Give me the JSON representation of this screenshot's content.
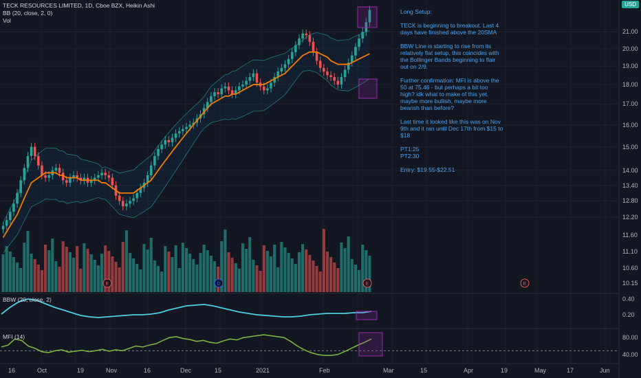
{
  "header": {
    "title": "TECK RESOURCES LIMITED, 1D, Cboe BZX, Heikin Ashi",
    "indicator_bb": "BB (20, close, 2, 0)",
    "indicator_vol": "Vol"
  },
  "currency": "USD",
  "price_axis": {
    "ticks": [
      "21.00",
      "20.00",
      "19.00",
      "18.00",
      "17.00",
      "16.00",
      "15.00",
      "14.00",
      "13.40",
      "12.80",
      "12.20",
      "11.60",
      "11.10",
      "10.60",
      "10.15"
    ]
  },
  "bbw_pane": {
    "title": "BBW (20, close, 2)",
    "ticks": [
      "0.40",
      "0.20"
    ]
  },
  "mfi_pane": {
    "title": "MFI (14)",
    "ticks": [
      "80.00",
      "40.00"
    ]
  },
  "time_axis": {
    "ticks": [
      "16",
      "Oct",
      "19",
      "Nov",
      "16",
      "Dec",
      "15",
      "2021",
      "Feb",
      "Mar",
      "15",
      "Apr",
      "19",
      "May",
      "17",
      "Jun"
    ]
  },
  "events": [
    "E",
    "D",
    "E",
    "E"
  ],
  "note": {
    "title": "Long Setup:",
    "p1": "TECK is beginning to breakout. Last 4 days have finished above the 20SMA",
    "p2": "BBW Line is starting to rise from its relatively flat setup, this coincides with the Bollinger Bands beginning to flair out on 2/9.",
    "p3": "Further confirmation: MFI is above the 50 at 75.46 - but perhaps a bit too high? idk what to make of this yet, maybe more bullish, maybe more bearish than before?",
    "p4": "Last time it looked like this was on Nov 9th and it ran until Dec 17th from $15 to $18",
    "pt1": "PT1:25",
    "pt2": "PT2:30",
    "entry": "Entry: $19.55-$22.51"
  },
  "colors": {
    "up": "#26a69a",
    "down": "#ef5350",
    "sma": "#f57c00",
    "bbw": "#4dd0e1",
    "mfi": "#7cb342",
    "note": "#4aa3f0",
    "highlight": "#9c27b0"
  },
  "chart_data": [
    {
      "type": "candlestick",
      "title": "TECK RESOURCES LIMITED, 1D, Cboe BZX, Heikin Ashi",
      "scale": "log",
      "ylim": [
        10.0,
        22.6
      ],
      "date_range": [
        "2020-09-14",
        "2021-02-17"
      ],
      "close": [
        11.9,
        12.1,
        12.4,
        12.7,
        13.1,
        13.6,
        14.1,
        14.6,
        15.0,
        14.6,
        14.2,
        13.8,
        13.7,
        13.8,
        14.0,
        14.1,
        13.9,
        13.6,
        13.5,
        13.7,
        13.8,
        13.7,
        13.6,
        13.7,
        13.5,
        13.6,
        13.7,
        13.8,
        13.9,
        13.8,
        13.7,
        13.4,
        13.0,
        12.8,
        12.6,
        12.7,
        12.8,
        12.9,
        13.1,
        13.3,
        13.5,
        13.8,
        14.2,
        14.6,
        14.9,
        15.1,
        15.3,
        15.2,
        15.4,
        15.6,
        15.7,
        15.8,
        15.9,
        16.0,
        16.1,
        16.3,
        16.5,
        16.8,
        17.1,
        17.4,
        17.6,
        17.5,
        17.8,
        17.9,
        17.7,
        17.5,
        17.7,
        17.9,
        18.0,
        18.2,
        18.4,
        18.6,
        18.1,
        17.9,
        17.7,
        17.8,
        18.1,
        18.4,
        18.7,
        18.9,
        19.1,
        19.4,
        19.8,
        20.2,
        20.6,
        20.9,
        20.8,
        20.4,
        19.8,
        19.3,
        18.9,
        18.7,
        18.5,
        18.4,
        18.2,
        18.0,
        18.4,
        18.8,
        19.2,
        19.6,
        20.1,
        20.6,
        21.0,
        21.6,
        22.4
      ],
      "sma20": [
        11.5,
        11.7,
        11.9,
        12.1,
        12.3,
        12.6,
        12.9,
        13.2,
        13.5,
        13.6,
        13.7,
        13.8,
        13.9,
        13.9,
        13.9,
        13.9,
        13.8,
        13.8,
        13.7,
        13.7,
        13.7,
        13.7,
        13.6,
        13.6,
        13.6,
        13.6,
        13.6,
        13.6,
        13.5,
        13.5,
        13.4,
        13.3,
        13.2,
        13.1,
        13.1,
        13.1,
        13.1,
        13.1,
        13.2,
        13.3,
        13.4,
        13.5,
        13.6,
        13.8,
        14.0,
        14.2,
        14.4,
        14.6,
        14.8,
        15.0,
        15.2,
        15.4,
        15.6,
        15.8,
        16.0,
        16.2,
        16.4,
        16.6,
        16.8,
        17.0,
        17.1,
        17.2,
        17.3,
        17.4,
        17.4,
        17.5,
        17.5,
        17.6,
        17.7,
        17.8,
        17.9,
        18.0,
        18.0,
        18.0,
        18.0,
        18.1,
        18.2,
        18.3,
        18.4,
        18.5,
        18.6,
        18.8,
        19.0,
        19.2,
        19.4,
        19.6,
        19.7,
        19.8,
        19.8,
        19.8,
        19.7,
        19.6,
        19.5,
        19.3,
        19.2,
        19.1,
        19.1,
        19.1,
        19.1,
        19.2,
        19.3,
        19.4,
        19.5,
        19.6,
        19.7
      ]
    },
    {
      "type": "line",
      "title": "BBW (20, close, 2)",
      "ylim": [
        0.05,
        0.45
      ],
      "values": [
        0.2,
        0.3,
        0.38,
        0.42,
        0.4,
        0.35,
        0.3,
        0.26,
        0.22,
        0.18,
        0.16,
        0.15,
        0.16,
        0.17,
        0.18,
        0.19,
        0.19,
        0.2,
        0.22,
        0.26,
        0.29,
        0.32,
        0.33,
        0.34,
        0.32,
        0.29,
        0.26,
        0.23,
        0.21,
        0.19,
        0.18,
        0.17,
        0.16,
        0.16,
        0.17,
        0.19,
        0.2,
        0.21,
        0.21,
        0.21,
        0.22,
        0.22,
        0.24
      ]
    },
    {
      "type": "line",
      "title": "MFI (14)",
      "ylim": [
        30,
        90
      ],
      "reference": 50,
      "values": [
        58,
        62,
        75,
        72,
        60,
        55,
        48,
        46,
        50,
        52,
        47,
        49,
        51,
        48,
        50,
        53,
        49,
        52,
        50,
        55,
        60,
        58,
        62,
        65,
        72,
        78,
        80,
        76,
        74,
        70,
        72,
        68,
        66,
        71,
        75,
        73,
        78,
        80,
        82,
        84,
        82,
        80,
        78,
        70,
        60,
        52,
        46,
        42,
        40,
        40,
        42,
        48,
        55,
        62,
        68,
        75
      ]
    }
  ]
}
